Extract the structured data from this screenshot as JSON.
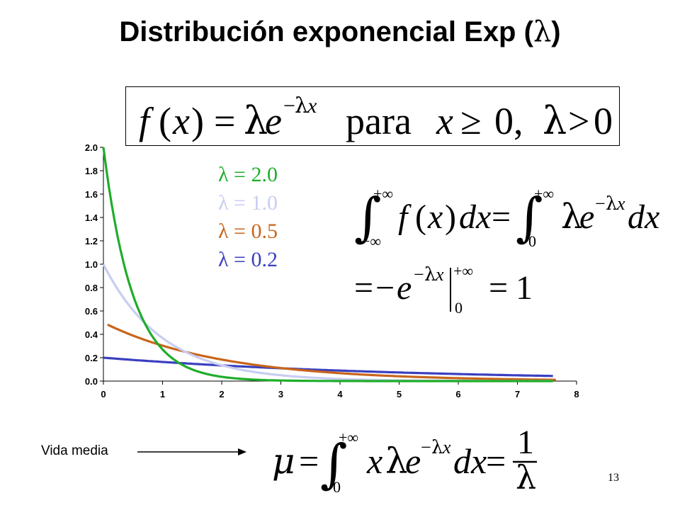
{
  "slide": {
    "title": "Distribución exponencial Exp (",
    "title_lambda": "λ",
    "title_close": ")",
    "page_number": "13",
    "mean_label": "Vida media"
  },
  "equations": {
    "pdf": "f(x) = λe^(−λx)  para  x ≥ 0,  λ > 0",
    "integral": "∫_{−∞}^{+∞} f(x)dx = ∫_0^{+∞} λe^(−λx) dx",
    "integral_result": "= −e^(−λx) |_0^{+∞} = 1",
    "mean": "μ = ∫_0^{+∞} xλe^(−λx) dx = 1/λ"
  },
  "chart_data": {
    "type": "line",
    "function": "f(x) = λ·e^(−λx)",
    "xlim": [
      0,
      8
    ],
    "ylim": [
      0,
      2.0
    ],
    "x_ticks": [
      "0",
      "1",
      "2",
      "3",
      "4",
      "5",
      "6",
      "7",
      "8"
    ],
    "y_ticks": [
      "0.0",
      "0.2",
      "0.4",
      "0.6",
      "0.8",
      "1.0",
      "1.2",
      "1.4",
      "1.6",
      "1.8",
      "2.0"
    ],
    "grid": false,
    "legend_position": "top-center",
    "series": [
      {
        "name": "λ = 2.0",
        "lambda": 2.0,
        "color": "#1fad2a",
        "x_start": 0,
        "x_end": 7.6
      },
      {
        "name": "λ = 1.0",
        "lambda": 1.0,
        "color": "#c8cdf2",
        "x_start": 0,
        "x_end": 7.6
      },
      {
        "name": "λ = 0.5",
        "lambda": 0.5,
        "color": "#c8651b",
        "x_start": 0.07,
        "x_end": 7.65
      },
      {
        "name": "λ = 0.2",
        "lambda": 0.2,
        "color": "#3a3fbf",
        "x_start": 0,
        "x_end": 7.6
      }
    ]
  }
}
